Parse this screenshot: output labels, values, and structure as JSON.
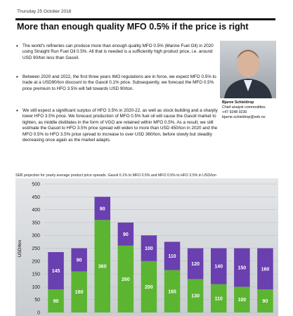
{
  "date": "Thursday 25 October 2018",
  "title": "More than enough quality MFO 0.5% if the price is right",
  "bullets": [
    "The world's refineries can produce more than enough quality MFO 0.5% (Marine Fuel Oil) in 2020 using Straight Run Fuel Oil 0.5%. All that is needed is a sufficiently high product price, i.e. around USD 90/ton less than Gasoil.",
    "Between 2020 and 2022, the first three years IMO regulations are in force, we expect MFO 0.5% to trade at a USD90/ton discount to the Gasoil 0.1% price. Subsequently, we forecast the MFO 0.5% price premium to HFO 3.5% will fall towards USD 90/ton.",
    "We still expect a significant surplus of HFO 3.5% in 2020-22, as well as stock building and a sharply lower HFO 3.5% price. We forecast production of MFO 0.5% fuel oil will cause the Gasoil market to tighten, as middle distillates in the form of VGO are retained within MFO 0.5%. As a result, we still estimate the Gasoil to HFO 3.5% price spread will widen to more than USD 450/ton in 2020 and the MFO 0.5% to HFO 3.5% price spread to increase to over USD 360/ton, before slowly but steadily decreasing once again as the market adapts."
  ],
  "contact": {
    "name": "Bjarne Schieldrop",
    "role": "Chief analyst commodities",
    "phone": "+47 9248 9230",
    "email": "bjarne.schieldrop@seb.no"
  },
  "chart_data": {
    "type": "bar",
    "stacked": true,
    "title": "SEB projection for yearly average product price spreads. Gasoil 0.1% to MFO 0.5% and MFO 0.5% to HFO 3.5% in USD/ton",
    "y_label": "USD/ton",
    "ylim": [
      0,
      500
    ],
    "yticks": [
      0,
      50,
      100,
      150,
      200,
      250,
      300,
      350,
      400,
      450,
      500
    ],
    "grid": true,
    "series": [
      {
        "color": "#5cb531",
        "values": [
          90,
          160,
          360,
          260,
          200,
          165,
          130,
          110,
          100,
          90
        ]
      },
      {
        "color": "#6a3fb0",
        "values": [
          145,
          90,
          90,
          90,
          100,
          110,
          120,
          140,
          150,
          160
        ]
      }
    ]
  }
}
